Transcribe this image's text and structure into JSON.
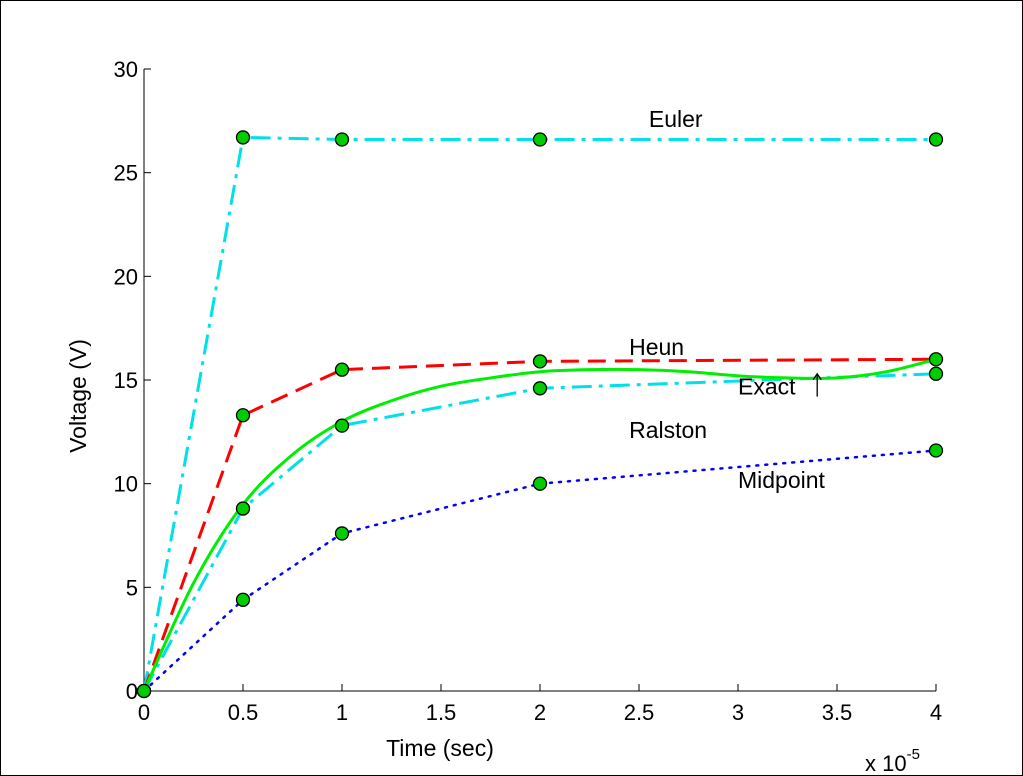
{
  "chart_data": {
    "type": "line",
    "xlabel": "Time (sec)",
    "ylabel": "Voltage (V)",
    "x_multiplier_label": "x 10",
    "x_multiplier_exponent": "-5",
    "xlim": [
      0,
      4
    ],
    "ylim": [
      0,
      30
    ],
    "xticks": [
      0,
      0.5,
      1,
      1.5,
      2,
      2.5,
      3,
      3.5,
      4
    ],
    "xtick_labels": [
      "0",
      "0.5",
      "1",
      "1.5",
      "2",
      "2.5",
      "3",
      "3.5",
      "4"
    ],
    "yticks": [
      0,
      5,
      10,
      15,
      20,
      25,
      30
    ],
    "ytick_labels": [
      "0",
      "5",
      "10",
      "15",
      "20",
      "25",
      "30"
    ],
    "grid": false,
    "series": [
      {
        "name": "Euler",
        "color": "#00e0e8",
        "style": "dashdot",
        "x": [
          0,
          0.5,
          1,
          2,
          4
        ],
        "y": [
          0,
          26.7,
          26.6,
          26.6,
          26.6
        ]
      },
      {
        "name": "Heun",
        "color": "#ff0000",
        "style": "dashed",
        "x": [
          0,
          0.5,
          1,
          2,
          4
        ],
        "y": [
          0,
          13.3,
          15.5,
          15.9,
          16.0
        ]
      },
      {
        "name": "Ralston",
        "color": "#00e0e8",
        "style": "dashdot",
        "x": [
          0,
          0.5,
          1,
          2,
          4
        ],
        "y": [
          0,
          8.8,
          12.8,
          14.6,
          15.3
        ]
      },
      {
        "name": "Midpoint",
        "color": "#0000ff",
        "style": "dotted",
        "x": [
          0,
          0.5,
          1,
          2,
          4
        ],
        "y": [
          0,
          4.4,
          7.6,
          10.0,
          11.6
        ]
      },
      {
        "name": "Exact",
        "color": "#00ee00",
        "style": "solid",
        "x": [
          0,
          0.25,
          0.5,
          0.75,
          1,
          1.25,
          1.5,
          1.75,
          2,
          2.25,
          2.5,
          2.75,
          3,
          3.25,
          3.5,
          3.75,
          4
        ],
        "y": [
          0,
          5.2,
          9.0,
          11.4,
          13.0,
          14.0,
          14.7,
          15.1,
          15.4,
          15.5,
          15.5,
          15.4,
          15.2,
          15.1,
          15.1,
          15.4,
          16.0
        ]
      }
    ],
    "annotations": [
      {
        "text": "Euler",
        "x": 2.55,
        "y": 27.2
      },
      {
        "text": "Heun",
        "x": 2.45,
        "y": 16.2
      },
      {
        "text": "Ralston",
        "x": 2.45,
        "y": 12.2
      },
      {
        "text": "Midpoint",
        "x": 3.0,
        "y": 9.8
      },
      {
        "text": "Exact",
        "x": 3.0,
        "y": 14.3
      }
    ],
    "arrow": {
      "x_from": 3.4,
      "y_from": 14.2,
      "x_to": 3.4,
      "y_to": 15.3
    }
  }
}
